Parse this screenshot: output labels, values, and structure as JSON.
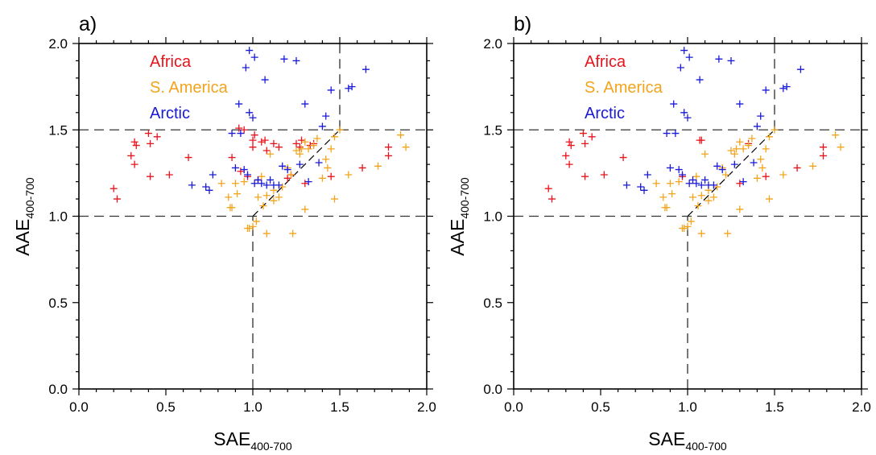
{
  "colors": {
    "africa": "#e8141c",
    "s_america": "#f2a41c",
    "arctic": "#1a1ad8"
  },
  "chart_data": [
    {
      "type": "scatter",
      "panel_label": "a)",
      "xlabel": "SAE",
      "xlabel_sub": "400-700",
      "ylabel": "AAE",
      "ylabel_sub": "400-700",
      "xlim": [
        0.0,
        2.0
      ],
      "ylim": [
        0.0,
        2.0
      ],
      "xticks": [
        "0.0",
        "0.5",
        "1.0",
        "1.5",
        "2.0"
      ],
      "yticks": [
        "0.0",
        "0.5",
        "1.0",
        "1.5",
        "2.0"
      ],
      "grid": false,
      "legend": "top-left",
      "reference_lines": {
        "horizontal_dashed": [
          1.0,
          1.5
        ],
        "vertical_dashed": [
          [
            1.0,
            0.0,
            1.0
          ],
          [
            1.5,
            1.5,
            2.0
          ]
        ],
        "diagonal_dashed": [
          [
            1.0,
            1.0
          ],
          [
            1.5,
            1.5
          ]
        ]
      },
      "series": [
        {
          "name": "Africa",
          "color_key": "africa",
          "points": [
            [
              0.2,
              1.16
            ],
            [
              0.22,
              1.1
            ],
            [
              0.3,
              1.35
            ],
            [
              0.32,
              1.3
            ],
            [
              0.32,
              1.43
            ],
            [
              0.33,
              1.41
            ],
            [
              0.4,
              1.48
            ],
            [
              0.41,
              1.42
            ],
            [
              0.41,
              1.23
            ],
            [
              0.45,
              1.46
            ],
            [
              0.52,
              1.24
            ],
            [
              0.63,
              1.34
            ],
            [
              0.88,
              1.34
            ],
            [
              0.92,
              1.51
            ],
            [
              0.93,
              1.26
            ],
            [
              0.95,
              1.5
            ],
            [
              0.97,
              1.23
            ],
            [
              1.0,
              1.4
            ],
            [
              1.0,
              1.44
            ],
            [
              1.01,
              1.47
            ],
            [
              1.03,
              1.21
            ],
            [
              1.05,
              1.43
            ],
            [
              1.07,
              1.44
            ],
            [
              1.08,
              1.38
            ],
            [
              1.12,
              1.42
            ],
            [
              1.15,
              1.4
            ],
            [
              1.2,
              1.22
            ],
            [
              1.22,
              1.24
            ],
            [
              1.25,
              1.42
            ],
            [
              1.27,
              1.4
            ],
            [
              1.28,
              1.44
            ],
            [
              1.3,
              1.19
            ],
            [
              1.33,
              1.41
            ],
            [
              1.35,
              1.42
            ],
            [
              1.45,
              1.23
            ],
            [
              1.63,
              1.28
            ],
            [
              1.78,
              1.35
            ],
            [
              1.78,
              1.4
            ]
          ]
        },
        {
          "name": "S. America",
          "color_key": "s_america",
          "points": [
            [
              0.82,
              1.19
            ],
            [
              0.86,
              1.11
            ],
            [
              0.87,
              1.05
            ],
            [
              0.88,
              1.05
            ],
            [
              0.9,
              1.19
            ],
            [
              0.91,
              1.13
            ],
            [
              0.95,
              1.2
            ],
            [
              0.97,
              0.93
            ],
            [
              0.98,
              0.93
            ],
            [
              1.0,
              0.94
            ],
            [
              1.02,
              0.97
            ],
            [
              1.03,
              1.11
            ],
            [
              1.05,
              1.23
            ],
            [
              1.06,
              1.06
            ],
            [
              1.08,
              0.9
            ],
            [
              1.08,
              1.12
            ],
            [
              1.1,
              1.36
            ],
            [
              1.12,
              1.09
            ],
            [
              1.12,
              1.15
            ],
            [
              1.15,
              1.11
            ],
            [
              1.17,
              1.17
            ],
            [
              1.2,
              1.28
            ],
            [
              1.22,
              1.24
            ],
            [
              1.23,
              0.9
            ],
            [
              1.25,
              1.38
            ],
            [
              1.27,
              1.36
            ],
            [
              1.28,
              1.39
            ],
            [
              1.3,
              1.04
            ],
            [
              1.3,
              1.43
            ],
            [
              1.32,
              1.39
            ],
            [
              1.35,
              1.41
            ],
            [
              1.37,
              1.45
            ],
            [
              1.4,
              1.22
            ],
            [
              1.42,
              1.33
            ],
            [
              1.43,
              1.28
            ],
            [
              1.45,
              1.39
            ],
            [
              1.47,
              1.46
            ],
            [
              1.47,
              1.1
            ],
            [
              1.5,
              1.5
            ],
            [
              1.55,
              1.24
            ],
            [
              1.72,
              1.29
            ],
            [
              1.85,
              1.47
            ],
            [
              1.88,
              1.4
            ]
          ]
        },
        {
          "name": "Arctic",
          "color_key": "arctic",
          "points": [
            [
              0.65,
              1.18
            ],
            [
              0.73,
              1.17
            ],
            [
              0.75,
              1.15
            ],
            [
              0.77,
              1.24
            ],
            [
              0.88,
              1.48
            ],
            [
              0.9,
              1.28
            ],
            [
              0.92,
              1.65
            ],
            [
              0.93,
              1.48
            ],
            [
              0.95,
              1.27
            ],
            [
              0.96,
              1.86
            ],
            [
              0.97,
              1.24
            ],
            [
              0.98,
              1.96
            ],
            [
              0.98,
              1.6
            ],
            [
              1.0,
              1.57
            ],
            [
              1.01,
              1.92
            ],
            [
              1.01,
              1.19
            ],
            [
              1.03,
              1.21
            ],
            [
              1.05,
              1.19
            ],
            [
              1.07,
              1.79
            ],
            [
              1.08,
              1.18
            ],
            [
              1.1,
              1.21
            ],
            [
              1.12,
              1.18
            ],
            [
              1.15,
              1.18
            ],
            [
              1.17,
              1.29
            ],
            [
              1.18,
              1.91
            ],
            [
              1.2,
              1.27
            ],
            [
              1.25,
              1.9
            ],
            [
              1.27,
              1.3
            ],
            [
              1.3,
              1.65
            ],
            [
              1.32,
              1.2
            ],
            [
              1.38,
              1.31
            ],
            [
              1.4,
              1.52
            ],
            [
              1.42,
              1.58
            ],
            [
              1.45,
              1.73
            ],
            [
              1.55,
              1.74
            ],
            [
              1.57,
              1.75
            ],
            [
              1.65,
              1.85
            ]
          ]
        }
      ]
    },
    {
      "type": "scatter",
      "panel_label": "b)",
      "xlabel": "SAE",
      "xlabel_sub": "400-700",
      "ylabel": "AAE",
      "ylabel_sub": "400-700",
      "xlim": [
        0.0,
        2.0
      ],
      "ylim": [
        0.0,
        2.0
      ],
      "xticks": [
        "0.0",
        "0.5",
        "1.0",
        "1.5",
        "2.0"
      ],
      "yticks": [
        "0.0",
        "0.5",
        "1.0",
        "1.5",
        "2.0"
      ],
      "grid": false,
      "legend": "top-left",
      "reference_lines": {
        "horizontal_dashed": [
          1.0,
          1.5
        ],
        "vertical_dashed": [
          [
            1.0,
            0.0,
            1.0
          ],
          [
            1.5,
            1.5,
            2.0
          ]
        ],
        "diagonal_dashed": [
          [
            1.0,
            1.0
          ],
          [
            1.5,
            1.5
          ]
        ]
      },
      "series": [
        {
          "name": "Africa",
          "color_key": "africa",
          "points": [
            [
              0.2,
              1.16
            ],
            [
              0.22,
              1.1
            ],
            [
              0.3,
              1.35
            ],
            [
              0.32,
              1.3
            ],
            [
              0.32,
              1.43
            ],
            [
              0.33,
              1.41
            ],
            [
              0.4,
              1.48
            ],
            [
              0.41,
              1.42
            ],
            [
              0.41,
              1.23
            ],
            [
              0.45,
              1.46
            ],
            [
              0.52,
              1.24
            ],
            [
              0.63,
              1.34
            ],
            [
              0.97,
              1.23
            ],
            [
              1.07,
              1.44
            ],
            [
              1.08,
              1.44
            ],
            [
              1.3,
              1.19
            ],
            [
              1.35,
              1.42
            ],
            [
              1.45,
              1.23
            ],
            [
              1.63,
              1.28
            ],
            [
              1.78,
              1.35
            ],
            [
              1.78,
              1.4
            ]
          ]
        },
        {
          "name": "S. America",
          "color_key": "s_america",
          "points": [
            [
              0.82,
              1.19
            ],
            [
              0.86,
              1.11
            ],
            [
              0.87,
              1.05
            ],
            [
              0.88,
              1.05
            ],
            [
              0.9,
              1.19
            ],
            [
              0.91,
              1.13
            ],
            [
              0.95,
              1.2
            ],
            [
              0.97,
              0.93
            ],
            [
              0.98,
              0.93
            ],
            [
              1.0,
              0.94
            ],
            [
              1.02,
              0.97
            ],
            [
              1.03,
              1.11
            ],
            [
              1.05,
              1.23
            ],
            [
              1.06,
              1.06
            ],
            [
              1.08,
              0.9
            ],
            [
              1.08,
              1.12
            ],
            [
              1.1,
              1.36
            ],
            [
              1.12,
              1.09
            ],
            [
              1.12,
              1.15
            ],
            [
              1.15,
              1.11
            ],
            [
              1.17,
              1.17
            ],
            [
              1.2,
              1.28
            ],
            [
              1.22,
              1.24
            ],
            [
              1.23,
              0.9
            ],
            [
              1.25,
              1.38
            ],
            [
              1.27,
              1.36
            ],
            [
              1.28,
              1.39
            ],
            [
              1.3,
              1.04
            ],
            [
              1.3,
              1.43
            ],
            [
              1.32,
              1.39
            ],
            [
              1.35,
              1.41
            ],
            [
              1.37,
              1.45
            ],
            [
              1.4,
              1.22
            ],
            [
              1.42,
              1.33
            ],
            [
              1.43,
              1.28
            ],
            [
              1.45,
              1.39
            ],
            [
              1.47,
              1.46
            ],
            [
              1.47,
              1.1
            ],
            [
              1.5,
              1.5
            ],
            [
              1.55,
              1.24
            ],
            [
              1.72,
              1.29
            ],
            [
              1.85,
              1.47
            ],
            [
              1.88,
              1.4
            ]
          ]
        },
        {
          "name": "Arctic",
          "color_key": "arctic",
          "points": [
            [
              0.65,
              1.18
            ],
            [
              0.73,
              1.17
            ],
            [
              0.75,
              1.15
            ],
            [
              0.77,
              1.24
            ],
            [
              0.88,
              1.48
            ],
            [
              0.9,
              1.28
            ],
            [
              0.92,
              1.65
            ],
            [
              0.93,
              1.48
            ],
            [
              0.95,
              1.27
            ],
            [
              0.96,
              1.86
            ],
            [
              0.97,
              1.24
            ],
            [
              0.98,
              1.96
            ],
            [
              0.98,
              1.6
            ],
            [
              1.0,
              1.57
            ],
            [
              1.01,
              1.92
            ],
            [
              1.01,
              1.19
            ],
            [
              1.03,
              1.21
            ],
            [
              1.05,
              1.19
            ],
            [
              1.07,
              1.79
            ],
            [
              1.08,
              1.18
            ],
            [
              1.1,
              1.21
            ],
            [
              1.12,
              1.18
            ],
            [
              1.15,
              1.18
            ],
            [
              1.17,
              1.29
            ],
            [
              1.18,
              1.91
            ],
            [
              1.2,
              1.27
            ],
            [
              1.25,
              1.9
            ],
            [
              1.27,
              1.3
            ],
            [
              1.3,
              1.65
            ],
            [
              1.32,
              1.2
            ],
            [
              1.38,
              1.31
            ],
            [
              1.4,
              1.52
            ],
            [
              1.42,
              1.58
            ],
            [
              1.45,
              1.73
            ],
            [
              1.55,
              1.74
            ],
            [
              1.57,
              1.75
            ],
            [
              1.65,
              1.85
            ]
          ]
        }
      ]
    }
  ]
}
